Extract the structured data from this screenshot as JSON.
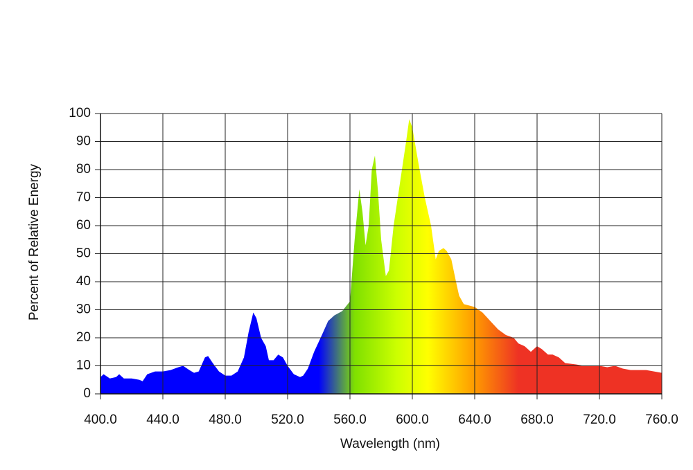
{
  "chart_data": {
    "type": "area",
    "x_label": "Wavelength (nm)",
    "y_label": "Percent of Relative Energy",
    "x": [
      400,
      402,
      406,
      410,
      412,
      415,
      420,
      425,
      427,
      430,
      435,
      440,
      445,
      450,
      453,
      457,
      460,
      463,
      467,
      469,
      472,
      476,
      480,
      484,
      488,
      492,
      495,
      498,
      500,
      503,
      506,
      508,
      511,
      514,
      517,
      520,
      524,
      528,
      530,
      533,
      537,
      542,
      546,
      550,
      555,
      560,
      563,
      566,
      568,
      570,
      572,
      574,
      576,
      578,
      580,
      583,
      585,
      588,
      592,
      596,
      598,
      600,
      604,
      608,
      612,
      615,
      617,
      620,
      622,
      625,
      628,
      630,
      633,
      640,
      645,
      650,
      655,
      660,
      665,
      668,
      672,
      676,
      680,
      683,
      687,
      690,
      694,
      698,
      705,
      710,
      720,
      725,
      730,
      735,
      740,
      750,
      760
    ],
    "values": [
      6,
      7,
      5.5,
      6,
      7,
      5.5,
      5.5,
      5,
      4.5,
      7,
      8,
      8,
      8.5,
      9.5,
      10,
      8.5,
      7.5,
      8,
      13,
      13.5,
      11,
      8,
      6.5,
      6.5,
      8,
      13,
      22,
      29,
      27,
      20,
      17,
      12,
      12,
      14,
      13,
      10,
      7,
      6,
      6.5,
      9,
      15,
      21,
      26,
      28,
      29.5,
      33,
      55,
      73,
      65,
      53,
      60,
      80,
      85,
      72,
      55,
      42,
      44,
      60,
      75,
      90,
      98,
      95,
      82,
      70,
      60,
      48,
      51,
      52,
      51,
      48,
      40,
      35,
      32,
      31,
      29,
      26,
      23,
      21,
      20,
      18,
      17,
      15,
      17,
      16,
      14,
      14,
      13,
      11,
      10.5,
      10,
      10,
      9.5,
      10,
      9,
      8.5,
      8.5,
      7.5
    ],
    "color_stops": [
      {
        "x": 540,
        "color": "#0000ff"
      },
      {
        "x": 563,
        "color": "#7fe000"
      },
      {
        "x": 590,
        "color": "#ccff00"
      },
      {
        "x": 610,
        "color": "#ffff00"
      },
      {
        "x": 640,
        "color": "#ff9a00"
      },
      {
        "x": 668,
        "color": "#ee3224"
      }
    ],
    "xlim": [
      400,
      760
    ],
    "xticks": [
      {
        "value": 400,
        "label": "400.0"
      },
      {
        "value": 440,
        "label": "440.0"
      },
      {
        "value": 480,
        "label": "480.0"
      },
      {
        "value": 520,
        "label": "520.0"
      },
      {
        "value": 560,
        "label": "560.0"
      },
      {
        "value": 600,
        "label": "600.0"
      },
      {
        "value": 640,
        "label": "640.0"
      },
      {
        "value": 680,
        "label": "680.0"
      },
      {
        "value": 720,
        "label": "720.0"
      },
      {
        "value": 760,
        "label": "760.0"
      }
    ],
    "ylim": [
      0,
      100
    ],
    "yticks": [
      0,
      10,
      20,
      30,
      40,
      50,
      60,
      70,
      80,
      90,
      100
    ],
    "grid": true
  }
}
